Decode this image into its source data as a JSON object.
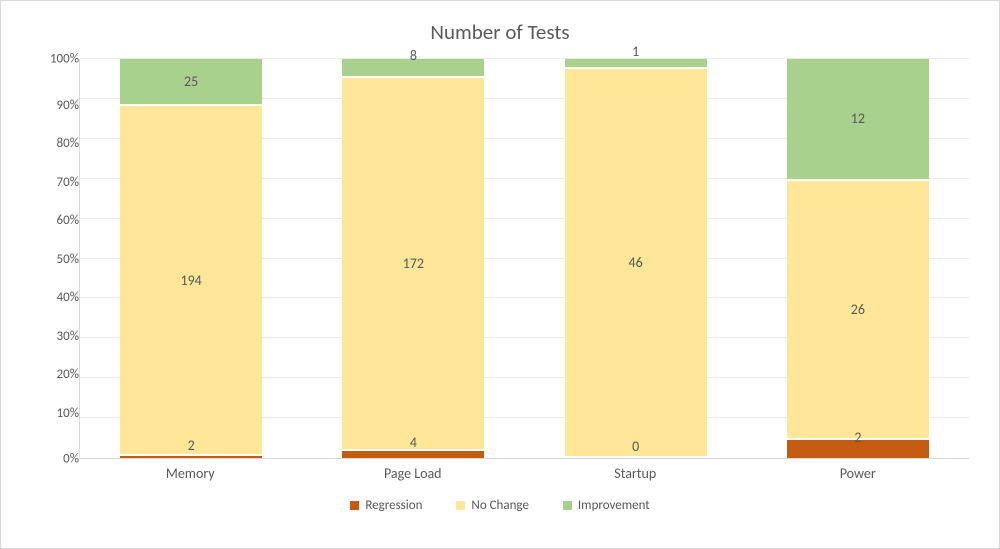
{
  "chart": {
    "type": "stacked-bar-100pct",
    "title": "Number of Tests",
    "title_fontsize": 21,
    "title_color": "#595959",
    "background_color": "#ffffff",
    "frame_border_color": "#d9d9d9",
    "grid_color": "#eceae8",
    "axis_line_color": "#d9d9d9",
    "label_fontsize": 13,
    "label_color": "#595959",
    "bar_width_pct": 64,
    "segment_gap_color": "#ffffff",
    "categories": [
      "Memory",
      "Page Load",
      "Startup",
      "Power"
    ],
    "series": [
      {
        "name": "Regression",
        "color": "#c55a11"
      },
      {
        "name": "No Change",
        "color": "#ffe699"
      },
      {
        "name": "Improvement",
        "color": "#a9d18e"
      }
    ],
    "values": {
      "Memory": {
        "Regression": 2,
        "No Change": 194,
        "Improvement": 25
      },
      "Page Load": {
        "Regression": 4,
        "No Change": 172,
        "Improvement": 8
      },
      "Startup": {
        "Regression": 0,
        "No Change": 46,
        "Improvement": 1
      },
      "Power": {
        "Regression": 2,
        "No Change": 26,
        "Improvement": 12
      }
    },
    "y_ticks": [
      "100%",
      "90%",
      "80%",
      "70%",
      "60%",
      "50%",
      "40%",
      "30%",
      "20%",
      "10%",
      "0%"
    ],
    "legend_position": "bottom-center"
  }
}
